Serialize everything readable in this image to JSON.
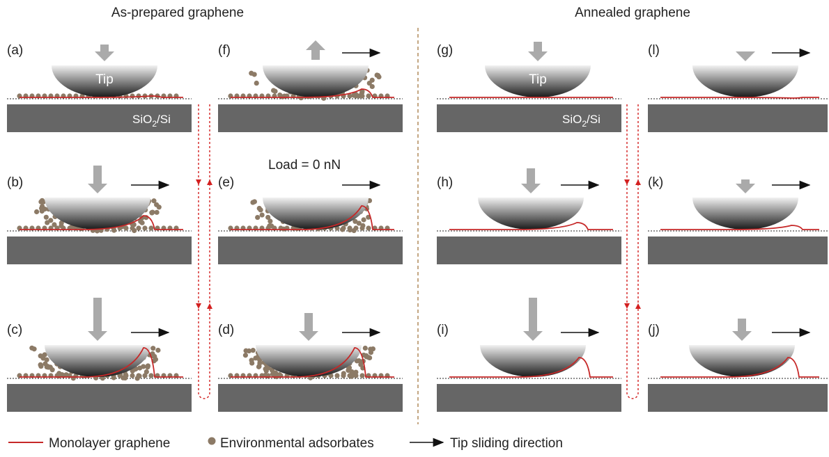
{
  "header": {
    "left_title": "As-prepared graphene",
    "right_title": "Annealed graphene"
  },
  "panels": [
    {
      "label": "(a)"
    },
    {
      "label": "(f)"
    },
    {
      "label": "(g)"
    },
    {
      "label": "(l)"
    },
    {
      "label": "(b)"
    },
    {
      "label": "(e)"
    },
    {
      "label": "(h)"
    },
    {
      "label": "(k)"
    },
    {
      "label": "(c)"
    },
    {
      "label": "(d)"
    },
    {
      "label": "(i)"
    },
    {
      "label": "(j)"
    }
  ],
  "annotations": {
    "tip_left": "Tip",
    "tip_right": "Tip",
    "substrate": {
      "base": "SiO",
      "subscript": "2",
      "rest": "/Si"
    },
    "load": "Load = 0 nN"
  },
  "legend": {
    "graphene": "Monolayer graphene",
    "adsorbates": "Environmental adsorbates",
    "sliding": "Tip sliding direction"
  }
}
